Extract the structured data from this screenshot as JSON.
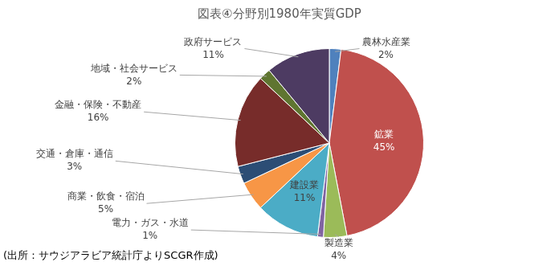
{
  "chart_data": {
    "type": "pie",
    "title": "図表④分野別1980年実質GDP",
    "categories": [
      "農林水産業",
      "鉱業",
      "製造業",
      "電力・ガス・水道",
      "建設業",
      "商業・飲食・宿泊",
      "交通・倉庫・通信",
      "金融・保険・不動産",
      "地域・社会サービス",
      "政府サービス"
    ],
    "values": [
      2,
      45,
      4,
      1,
      11,
      5,
      3,
      16,
      2,
      11
    ],
    "value_labels": [
      "2%",
      "45%",
      "4%",
      "1%",
      "11%",
      "5%",
      "3%",
      "16%",
      "2%",
      "11%"
    ],
    "colors": [
      "#4F81BD",
      "#C0504D",
      "#9BBB59",
      "#8064A2",
      "#4BACC6",
      "#F79646",
      "#2C4D75",
      "#772C2A",
      "#5F7530",
      "#4D3B62"
    ],
    "data_labels": true,
    "note": "(出所：サウジアラビア統計庁よりSCGR作成)"
  }
}
